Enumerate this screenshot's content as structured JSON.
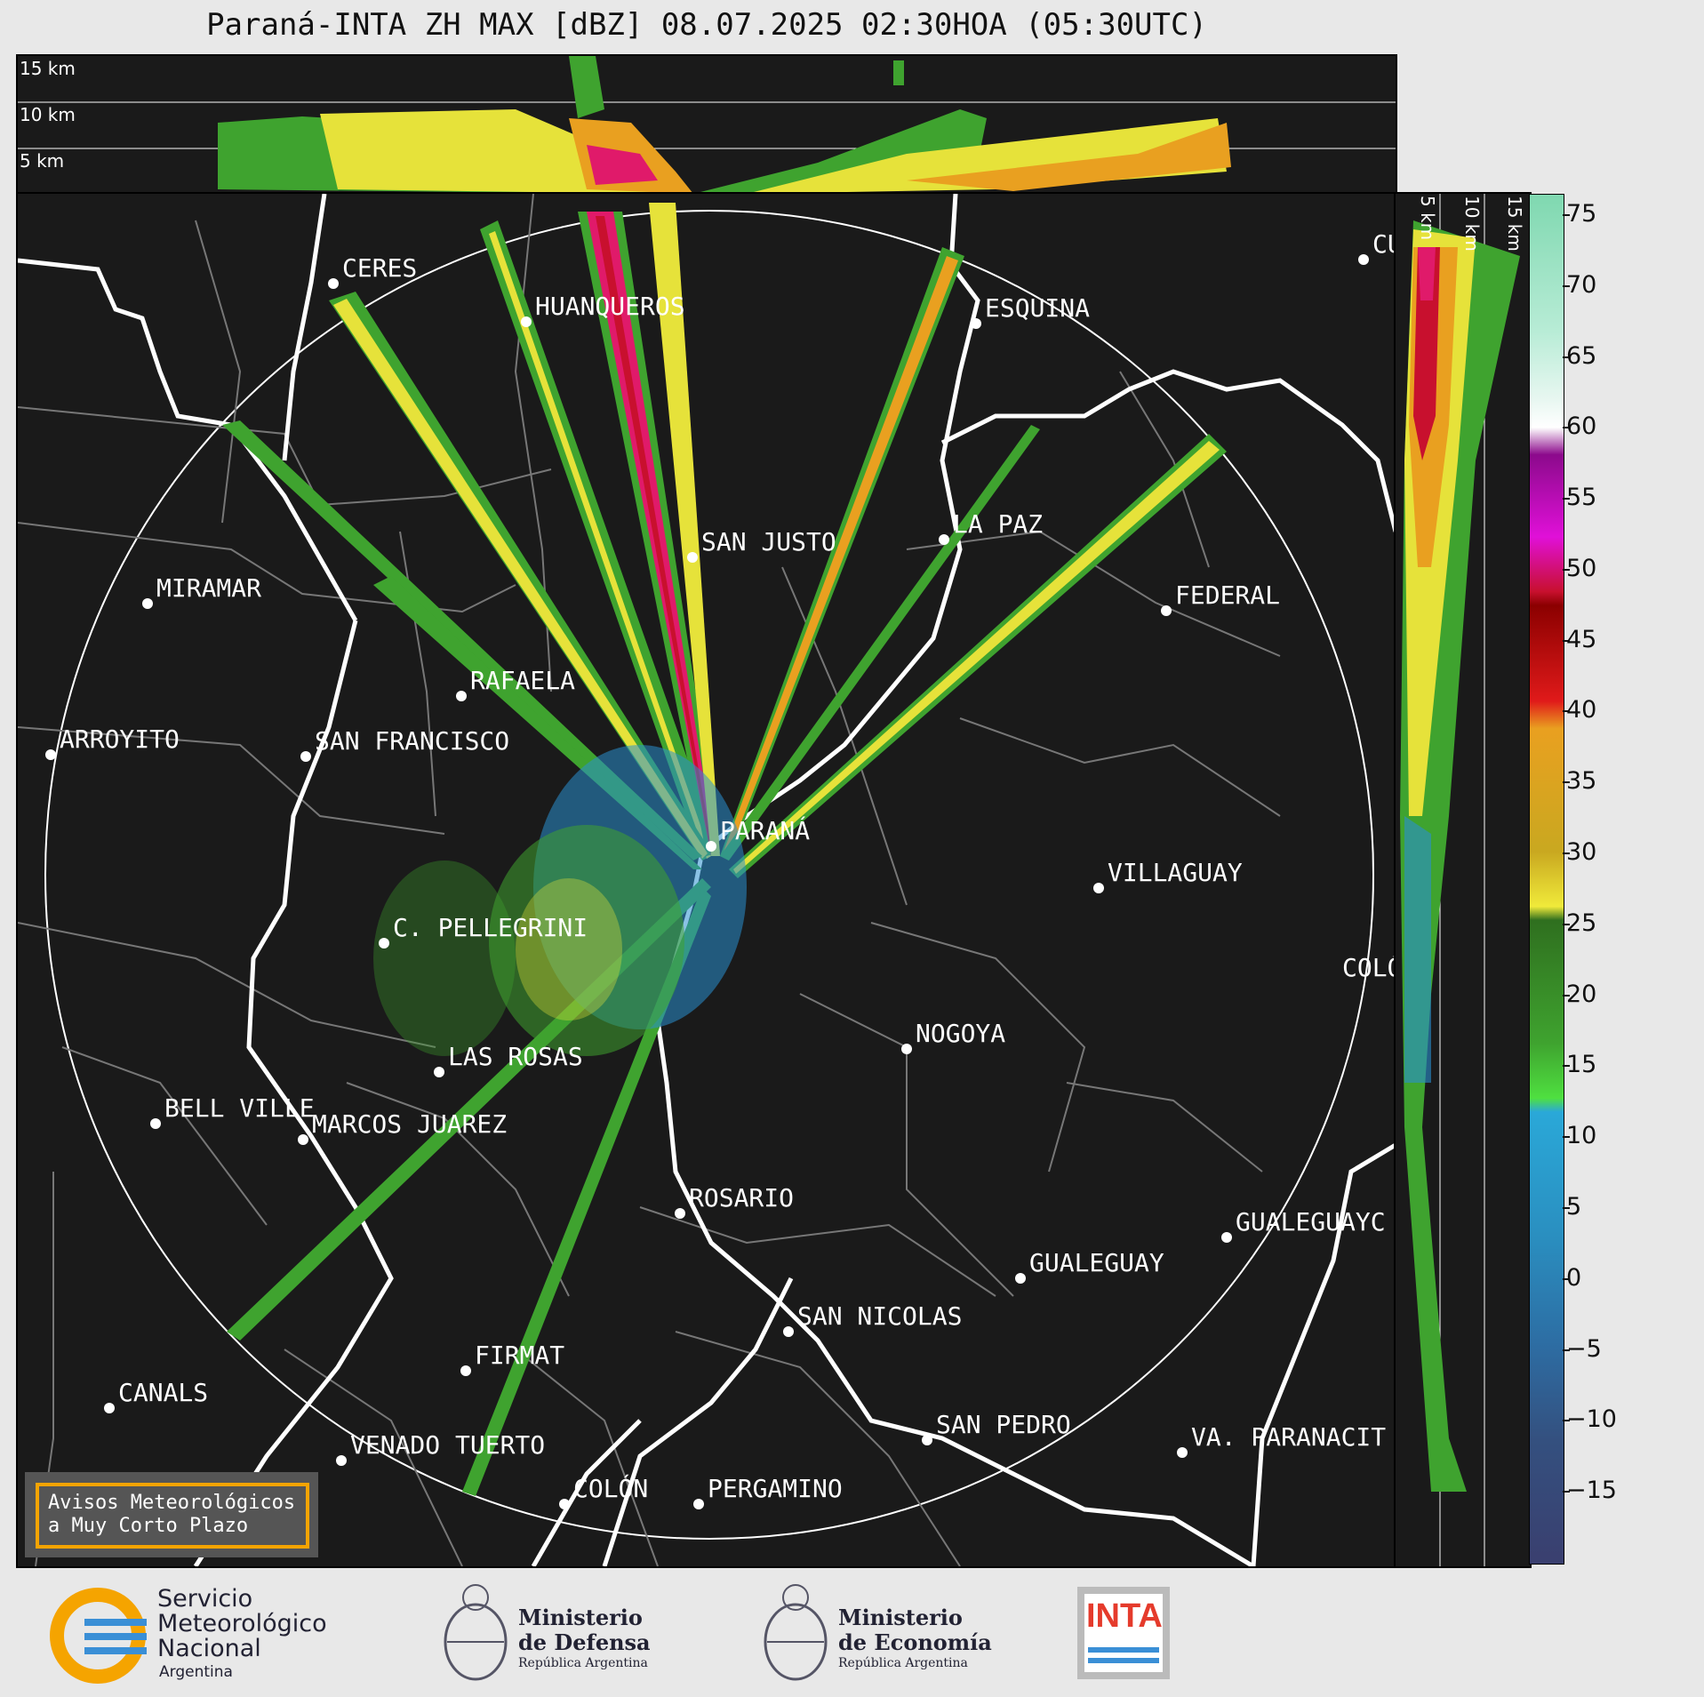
{
  "title": "Paraná-INTA ZH MAX [dBZ] 08.07.2025 02:30HOA (05:30UTC)",
  "height_labels": [
    "15 km",
    "10 km",
    "5 km"
  ],
  "side_labels": [
    "5 km",
    "10 km",
    "15 km"
  ],
  "cities": [
    {
      "name": "CERES"
    },
    {
      "name": "HUANQUEROS"
    },
    {
      "name": "ESQUINA"
    },
    {
      "name": "CU"
    },
    {
      "name": "SAN JUSTO"
    },
    {
      "name": "LA PAZ"
    },
    {
      "name": "MIRAMAR"
    },
    {
      "name": "FEDERAL"
    },
    {
      "name": "RAFAELA"
    },
    {
      "name": "ARROYITO"
    },
    {
      "name": "SAN FRANCISCO"
    },
    {
      "name": "PARANÁ"
    },
    {
      "name": "VILLAGUAY"
    },
    {
      "name": "C. PELLEGRINI"
    },
    {
      "name": "COLÓ"
    },
    {
      "name": "NOGOYA"
    },
    {
      "name": "LAS ROSAS"
    },
    {
      "name": "BELL VILLE"
    },
    {
      "name": "MARCOS JUAREZ"
    },
    {
      "name": "ROSARIO"
    },
    {
      "name": "GUALEGUAYC"
    },
    {
      "name": "GUALEGUAY"
    },
    {
      "name": "SAN NICOLAS"
    },
    {
      "name": "FIRMAT"
    },
    {
      "name": "CANALS"
    },
    {
      "name": "SAN PEDRO"
    },
    {
      "name": "VA. PARANACIT"
    },
    {
      "name": "VENADO TUERTO"
    },
    {
      "name": "COLÓN"
    },
    {
      "name": "PERGAMINO"
    }
  ],
  "colorbar": {
    "ticks": [
      "75",
      "70",
      "65",
      "60",
      "55",
      "50",
      "45",
      "40",
      "35",
      "30",
      "25",
      "20",
      "15",
      "10",
      "5",
      "0",
      "−5",
      "−10",
      "−15"
    ],
    "min": -20,
    "max": 76.5
  },
  "warning": {
    "line1": "Avisos Meteorológicos",
    "line2": "a Muy Corto Plazo"
  },
  "logos": {
    "smn": {
      "line1": "Servicio",
      "line2": "Meteorológico",
      "line3": "Nacional",
      "line4": "Argentina"
    },
    "defensa": {
      "line1": "Ministerio",
      "line2": "de Defensa",
      "line3": "República Argentina"
    },
    "economia": {
      "line1": "Ministerio",
      "line2": "de Economía",
      "line3": "República Argentina"
    },
    "inta": {
      "text": "INTA"
    }
  },
  "colors": {
    "background": "#1a1a1a",
    "accent_warning": "#f5a400",
    "inta_red": "#e53b2c",
    "smn_blue": "#3a8fd6",
    "smn_yellow": "#f5a400"
  }
}
